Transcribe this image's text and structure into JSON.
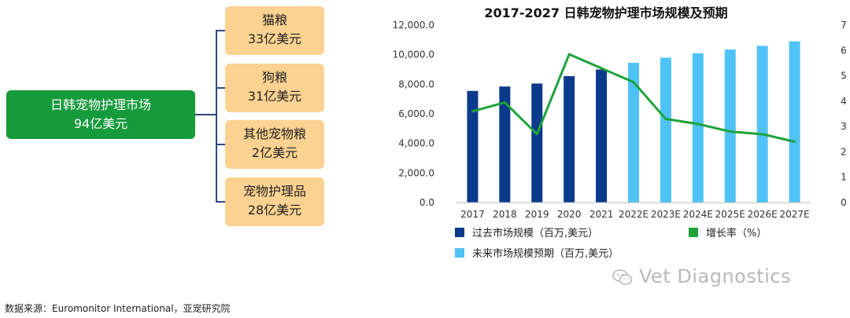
{
  "tree": {
    "root": {
      "line1": "日韩宠物护理市场",
      "line2": "94亿美元"
    },
    "leaves": [
      {
        "line1": "猫粮",
        "line2": "33亿美元"
      },
      {
        "line1": "狗粮",
        "line2": "31亿美元"
      },
      {
        "line1": "其他宠物粮",
        "line2": "2亿美元"
      },
      {
        "line1": "宠物护理品",
        "line2": "28亿美元"
      }
    ]
  },
  "chart_data": {
    "type": "bar",
    "title": "2017-2027 日韩宠物护理市场规模及预期",
    "categories": [
      "2017",
      "2018",
      "2019",
      "2020",
      "2021",
      "2022E",
      "2023E",
      "2024E",
      "2025E",
      "2026E",
      "2027E"
    ],
    "series": [
      {
        "name": "过去市场规模（百万,美元）",
        "kind": "bar",
        "color": "#0a3a8c",
        "values": [
          7550,
          7850,
          8050,
          8550,
          9000,
          null,
          null,
          null,
          null,
          null,
          null
        ]
      },
      {
        "name": "未来市场规模预期（百万,美元）",
        "kind": "bar",
        "color": "#4fc3f7",
        "values": [
          null,
          null,
          null,
          null,
          null,
          9450,
          9800,
          10100,
          10350,
          10600,
          10900
        ]
      },
      {
        "name": "增长率（%）",
        "kind": "line",
        "axis": "right",
        "color": "#1ea33b",
        "values": [
          3.6,
          3.95,
          2.7,
          5.85,
          5.3,
          4.75,
          3.3,
          3.1,
          2.8,
          2.7,
          2.4
        ]
      }
    ],
    "yleft": {
      "min": 0,
      "max": 12000,
      "ticks": [
        "0.0",
        "2,000.0",
        "4,000.0",
        "6,000.0",
        "8,000.0",
        "10,000.0",
        "12,000.0"
      ]
    },
    "yright": {
      "min": 0,
      "max": 7,
      "ticks": [
        "0",
        "1",
        "2",
        "3",
        "4",
        "5",
        "6",
        "7"
      ]
    },
    "grid": false,
    "legend": "bottom"
  },
  "footer": {
    "source": "数据来源：Euromonitor International，亚宠研究院"
  },
  "watermark": {
    "text": "Vet Diagnostics",
    "icon": "wechat-icon"
  }
}
